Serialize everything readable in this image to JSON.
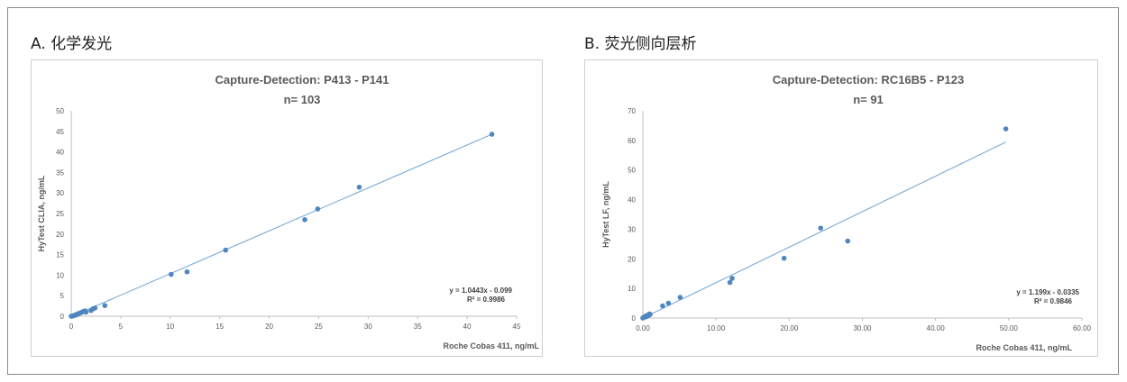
{
  "panels": [
    {
      "title": "A. 化学发光"
    },
    {
      "title": "B. 荧光侧向层析"
    }
  ],
  "chart_data": [
    {
      "type": "scatter",
      "title": "Capture-Detection:  P413 - P141",
      "subtitle": "n= 103",
      "xlabel": "Roche Cobas 411, ng/mL",
      "ylabel": "HyTest CLIA, ng/mL",
      "xlim": [
        0,
        45
      ],
      "ylim": [
        0,
        50
      ],
      "xticks": [
        "0",
        "5",
        "10",
        "15",
        "20",
        "25",
        "30",
        "35",
        "40",
        "45"
      ],
      "yticks": [
        "0",
        "5",
        "10",
        "15",
        "20",
        "25",
        "30",
        "35",
        "40",
        "45",
        "50"
      ],
      "grid": false,
      "legend": "none",
      "trendline": {
        "slope": 1.0443,
        "intercept": -0.099,
        "equation": "y = 1.0443x - 0.099",
        "r2": "R² = 0.9986"
      },
      "colors": {
        "points": "#4f86c0",
        "line": "#6aa3d6"
      },
      "points": [
        {
          "x": 0.0,
          "y": 0.0
        },
        {
          "x": 0.1,
          "y": 0.05
        },
        {
          "x": 0.2,
          "y": 0.1
        },
        {
          "x": 0.3,
          "y": 0.2
        },
        {
          "x": 0.4,
          "y": 0.3
        },
        {
          "x": 0.5,
          "y": 0.3
        },
        {
          "x": 0.6,
          "y": 0.5
        },
        {
          "x": 0.7,
          "y": 0.6
        },
        {
          "x": 0.8,
          "y": 0.7
        },
        {
          "x": 0.9,
          "y": 0.8
        },
        {
          "x": 1.0,
          "y": 0.9
        },
        {
          "x": 1.1,
          "y": 1.0
        },
        {
          "x": 1.2,
          "y": 1.1
        },
        {
          "x": 1.4,
          "y": 1.3
        },
        {
          "x": 1.5,
          "y": 1.0
        },
        {
          "x": 2.0,
          "y": 1.4
        },
        {
          "x": 2.2,
          "y": 1.8
        },
        {
          "x": 2.4,
          "y": 2.0
        },
        {
          "x": 3.4,
          "y": 2.6
        },
        {
          "x": 10.1,
          "y": 10.2
        },
        {
          "x": 11.7,
          "y": 10.8
        },
        {
          "x": 15.6,
          "y": 16.1
        },
        {
          "x": 23.6,
          "y": 23.5
        },
        {
          "x": 24.9,
          "y": 26.1
        },
        {
          "x": 29.1,
          "y": 31.4
        },
        {
          "x": 42.5,
          "y": 44.3
        }
      ]
    },
    {
      "type": "scatter",
      "title": "Capture-Detection:  RC16B5 - P123",
      "subtitle": "n= 91",
      "xlabel": "Roche Cobas 411, ng/mL",
      "ylabel": "HyTest LF, ng/mL",
      "xlim": [
        0,
        60
      ],
      "ylim": [
        0,
        70
      ],
      "xticks": [
        "0.00",
        "10.00",
        "20.00",
        "30.00",
        "40.00",
        "50.00",
        "60.00"
      ],
      "yticks": [
        "0",
        "10",
        "20",
        "30",
        "40",
        "50",
        "60",
        "70"
      ],
      "grid": false,
      "legend": "none",
      "trendline": {
        "slope": 1.199,
        "intercept": -0.0335,
        "equation": "y = 1.199x - 0.0335",
        "r2": "R² = 0.9846"
      },
      "colors": {
        "points": "#4f86c0",
        "line": "#6aa3d6"
      },
      "points": [
        {
          "x": 0.0,
          "y": 0.0
        },
        {
          "x": 0.1,
          "y": 0.2
        },
        {
          "x": 0.2,
          "y": 0.3
        },
        {
          "x": 0.3,
          "y": 0.5
        },
        {
          "x": 0.4,
          "y": 0.4
        },
        {
          "x": 0.5,
          "y": 0.8
        },
        {
          "x": 0.6,
          "y": 0.6
        },
        {
          "x": 0.7,
          "y": 1.0
        },
        {
          "x": 0.8,
          "y": 0.9
        },
        {
          "x": 0.9,
          "y": 1.4
        },
        {
          "x": 1.0,
          "y": 1.2
        },
        {
          "x": 2.7,
          "y": 4.1
        },
        {
          "x": 3.5,
          "y": 5.0
        },
        {
          "x": 5.1,
          "y": 7.0
        },
        {
          "x": 11.9,
          "y": 12.0
        },
        {
          "x": 12.2,
          "y": 13.4
        },
        {
          "x": 19.3,
          "y": 20.2
        },
        {
          "x": 24.3,
          "y": 30.4
        },
        {
          "x": 28.0,
          "y": 26.0
        },
        {
          "x": 49.6,
          "y": 63.9
        }
      ]
    }
  ]
}
